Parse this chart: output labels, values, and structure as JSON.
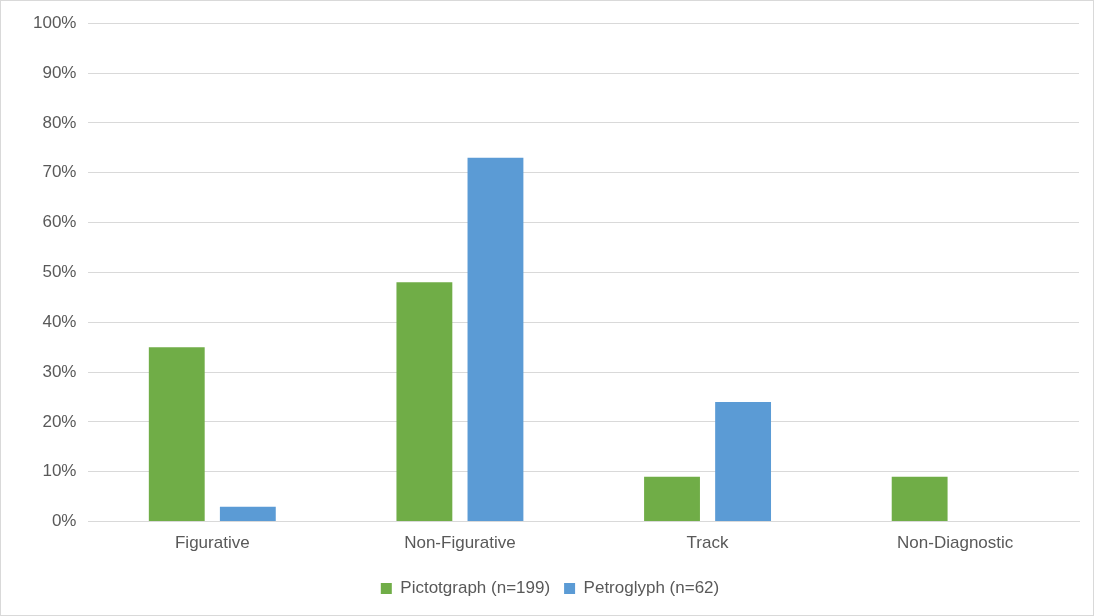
{
  "chart_data": {
    "type": "bar",
    "categories": [
      "Figurative",
      "Non-Figurative",
      "Track",
      "Non-Diagnostic"
    ],
    "series": [
      {
        "name": "Pictotgraph (n=199)",
        "color": "#70ad47",
        "values": [
          35,
          48,
          9,
          9
        ]
      },
      {
        "name": "Petroglyph (n=62)",
        "color": "#5b9bd5",
        "values": [
          3,
          73,
          24,
          0
        ]
      }
    ],
    "ylim": [
      0,
      100
    ],
    "yticks": [
      {
        "value": 0,
        "label": "0%"
      },
      {
        "value": 10,
        "label": "10%"
      },
      {
        "value": 20,
        "label": "20%"
      },
      {
        "value": 30,
        "label": "30%"
      },
      {
        "value": 40,
        "label": "40%"
      },
      {
        "value": 50,
        "label": "50%"
      },
      {
        "value": 60,
        "label": "60%"
      },
      {
        "value": 70,
        "label": "70%"
      },
      {
        "value": 80,
        "label": "80%"
      },
      {
        "value": 90,
        "label": "90%"
      },
      {
        "value": 100,
        "label": "100%"
      }
    ],
    "grid": "y",
    "legend": "bottom"
  }
}
